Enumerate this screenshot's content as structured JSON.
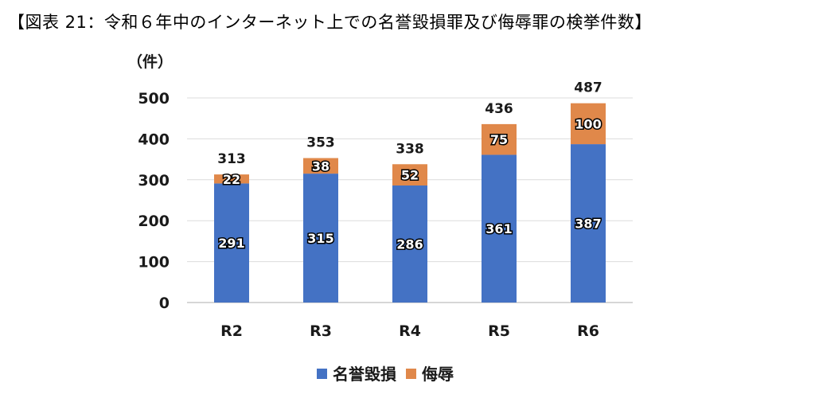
{
  "title": "【図表 21：令和６年中のインターネット上での名誉毀損罪及び侮辱罪の検挙件数】",
  "chart_data": {
    "type": "bar",
    "stacked": true,
    "title": "【図表 21：令和６年中のインターネット上での名誉毀損罪及び侮辱罪の検挙件数】",
    "unit_label": "（件）",
    "categories": [
      "R2",
      "R3",
      "R4",
      "R5",
      "R6"
    ],
    "series": [
      {
        "name": "名誉毀損",
        "color": "#4472C4",
        "values": [
          291,
          315,
          286,
          361,
          387
        ]
      },
      {
        "name": "侮辱",
        "color": "#E0884A",
        "values": [
          22,
          38,
          52,
          75,
          100
        ]
      }
    ],
    "totals": [
      313,
      353,
      338,
      436,
      487
    ],
    "ylim": [
      0,
      500
    ],
    "yticks": [
      0,
      100,
      200,
      300,
      400,
      500
    ],
    "grid": true,
    "legend_position": "bottom"
  }
}
